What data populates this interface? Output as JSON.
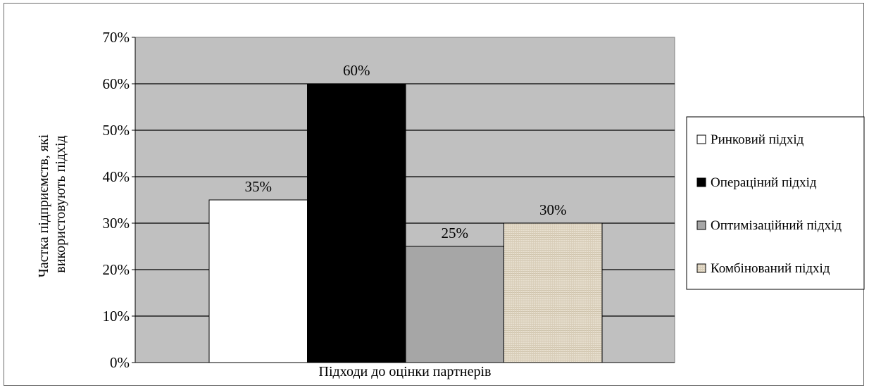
{
  "chart_data": {
    "type": "bar",
    "categories": [
      "Підходи до оцінки партнерів"
    ],
    "series": [
      {
        "name": "Ринковий підхід",
        "values": [
          0.35
        ],
        "label": "35%",
        "color": "#ffffff"
      },
      {
        "name": "Операціний підхід",
        "values": [
          0.6
        ],
        "label": "60%",
        "color": "#000000"
      },
      {
        "name": "Оптимізаційний підхід",
        "values": [
          0.25
        ],
        "label": "25%",
        "color": "#a6a6a6"
      },
      {
        "name": "Комбінований підхід",
        "values": [
          0.3
        ],
        "label": "30%",
        "color": "#e7dfcf"
      }
    ],
    "yticks": [
      "0%",
      "10%",
      "20%",
      "30%",
      "40%",
      "50%",
      "60%",
      "70%"
    ],
    "ylim": [
      0,
      0.7
    ],
    "xlabel": "Підходи до оцінки партнерів",
    "ylabel_lines": [
      "Частка  підприємств, які",
      "використовують підхід"
    ],
    "plot_background": "#c0c0c0",
    "grid": true,
    "legend_position": "right"
  }
}
